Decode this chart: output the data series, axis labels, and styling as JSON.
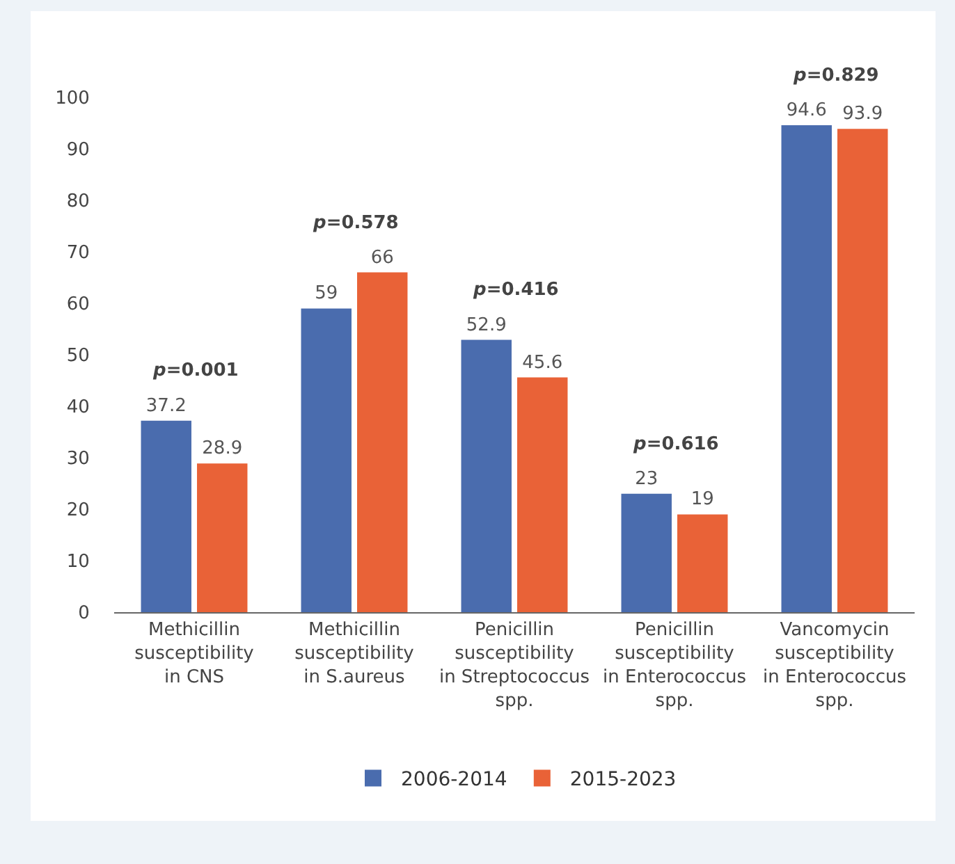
{
  "chart_data": {
    "type": "bar",
    "categories": [
      "Methicillin\nsusceptibility\nin CNS",
      "Methicillin\nsusceptibility\nin S.aureus",
      "Penicillin\nsusceptibility\nin Streptococcus\nspp.",
      "Penicillin\nsusceptibility\nin Enterococcus\nspp.",
      "Vancomycin\nsusceptibility\nin Enterococcus\nspp."
    ],
    "series": [
      {
        "name": "2006-2014",
        "color": "#4a6cae",
        "values": [
          37.2,
          59,
          52.9,
          23,
          94.6
        ]
      },
      {
        "name": "2015-2023",
        "color": "#e96237",
        "values": [
          28.9,
          66,
          45.6,
          19,
          93.9
        ]
      }
    ],
    "data_labels": true,
    "ylim": [
      0,
      100
    ],
    "yticks": [
      0,
      10,
      20,
      30,
      40,
      50,
      60,
      70,
      80,
      90,
      100
    ],
    "grid": false,
    "legend": "bottom",
    "annotations": [
      "p=0.001",
      "p=0.578",
      "p=0.416",
      "p=0.616",
      "p=0.829"
    ]
  }
}
